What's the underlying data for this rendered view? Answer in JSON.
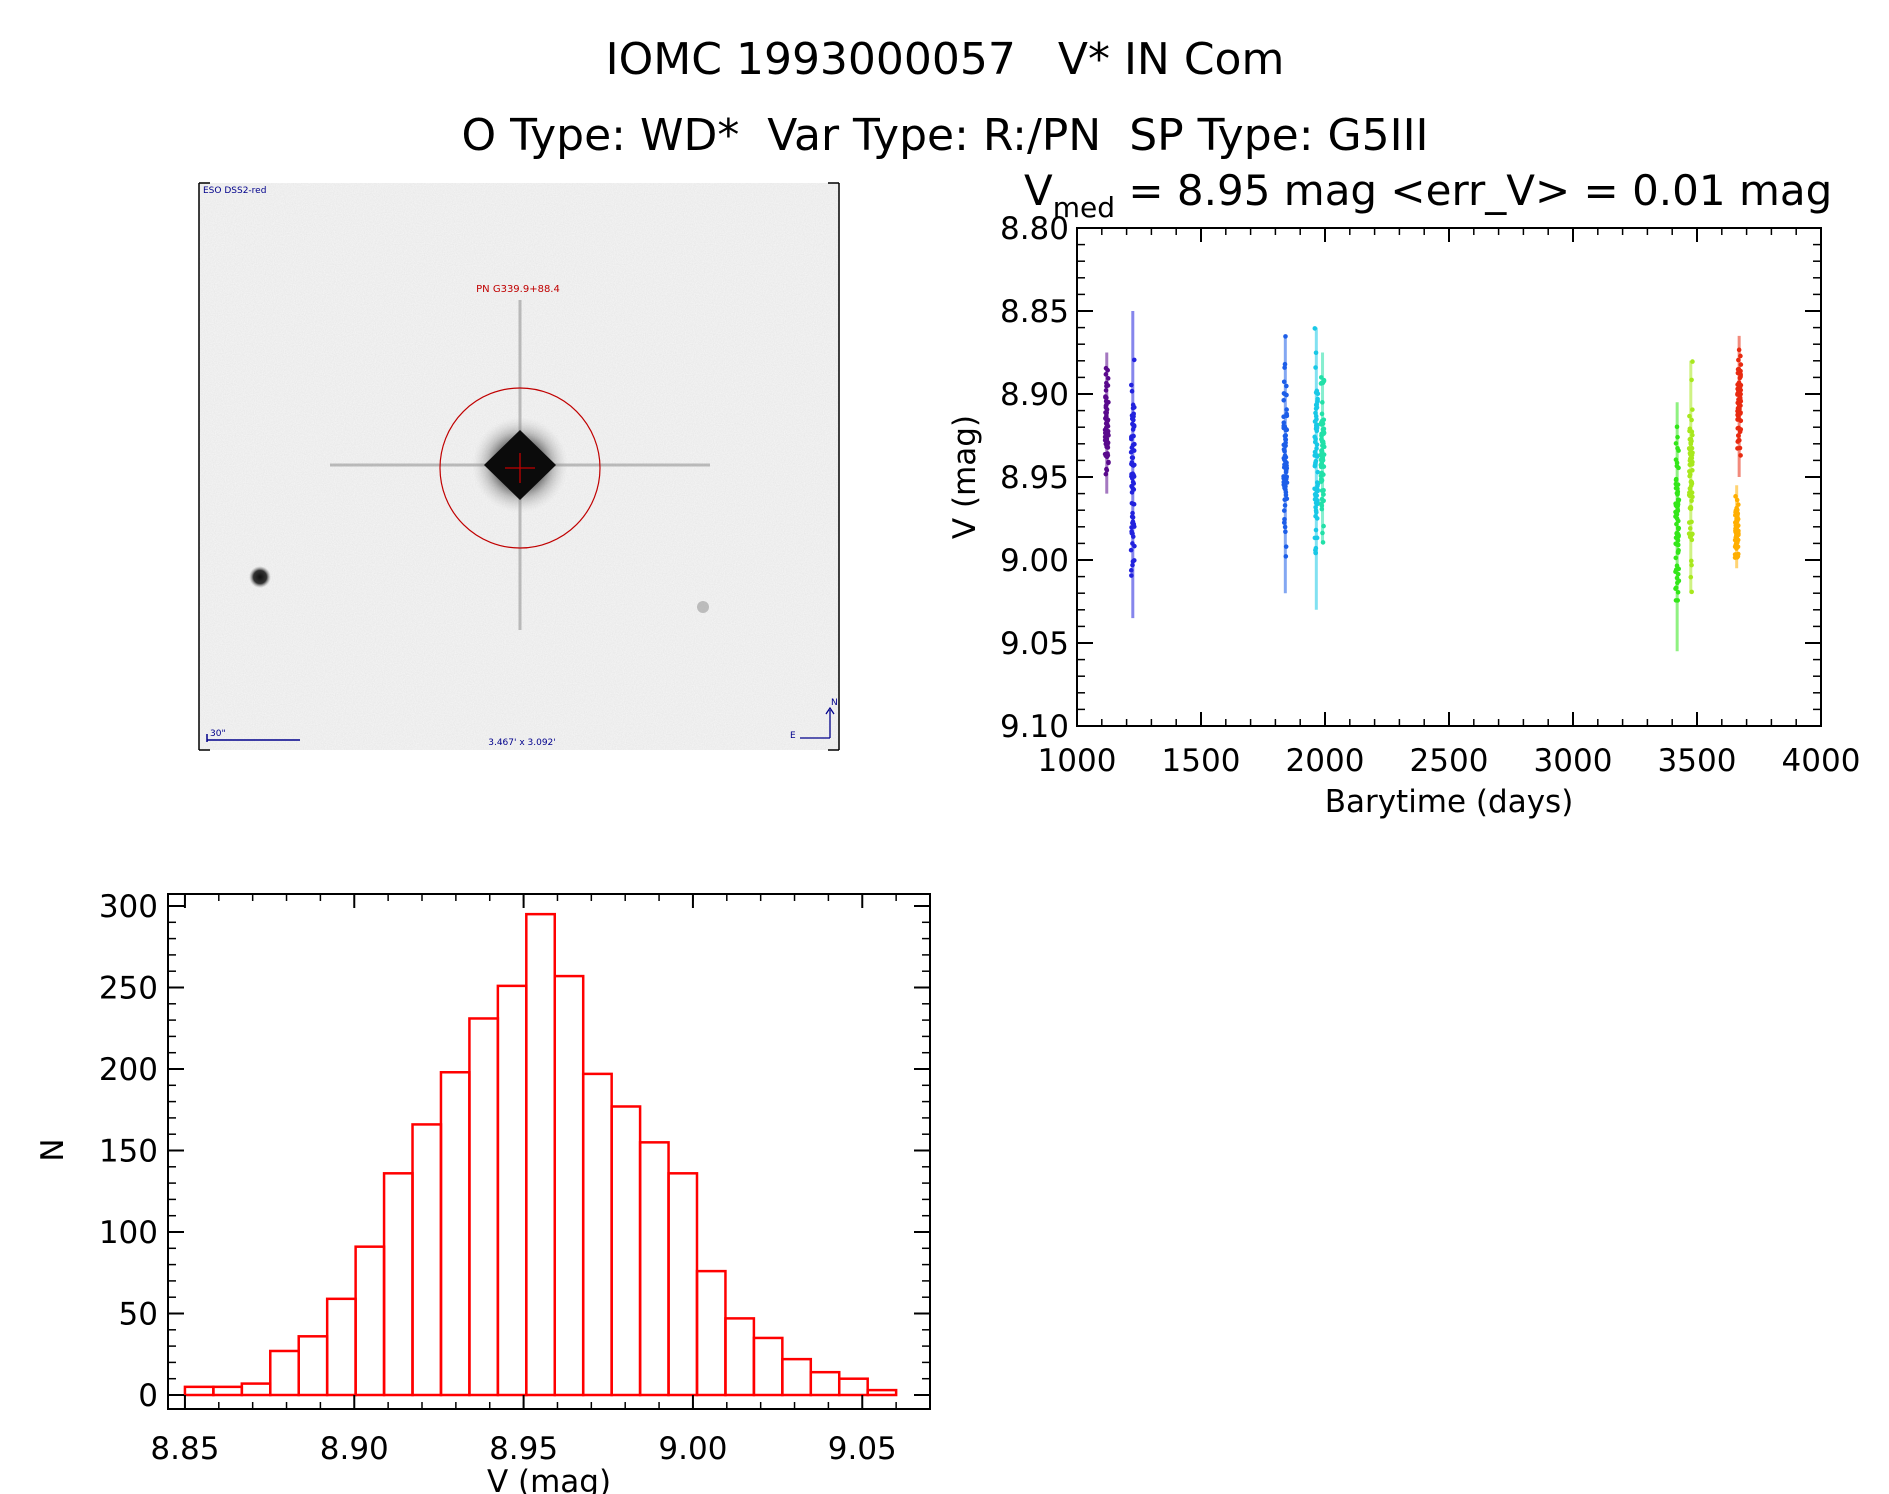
{
  "header": {
    "title_line1": "IOMC 1993000057   V* IN Com",
    "title_line2": "O Type: WD*  Var Type: R:/PN  SP Type: G5III"
  },
  "finder_image": {
    "survey_label": "ESO DSS2-red",
    "object_label": "PN G339.9+88.4",
    "scale_label": "30\"",
    "size_label": "3.467' x 3.092'",
    "north_label": "N",
    "east_label": "E",
    "marker_color": "#c00000",
    "annotation_color": "#00008b"
  },
  "chart_data": [
    {
      "type": "scatter",
      "title_prefix": "V",
      "title_subscript": "med",
      "title_rest": " = 8.95 mag <err_V> = 0.01 mag",
      "xlabel": "Barytime (days)",
      "ylabel": "V (mag)",
      "xlim": [
        1000,
        4000
      ],
      "ylim": [
        9.1,
        8.8
      ],
      "y_inverted": true,
      "x_ticks": [
        "1000",
        "1500",
        "2000",
        "2500",
        "3000",
        "3500",
        "4000"
      ],
      "y_ticks": [
        "8.80",
        "8.85",
        "8.90",
        "8.95",
        "9.00",
        "9.05",
        "9.10"
      ],
      "series": [
        {
          "x": 1120,
          "ymin": 8.875,
          "ymax": 8.96,
          "color": "#5a0a8c"
        },
        {
          "x": 1225,
          "ymin": 8.85,
          "ymax": 9.035,
          "color": "#2222dd"
        },
        {
          "x": 1840,
          "ymin": 8.865,
          "ymax": 9.02,
          "color": "#1e5ee8"
        },
        {
          "x": 1965,
          "ymin": 8.86,
          "ymax": 9.03,
          "color": "#19c8e6"
        },
        {
          "x": 1990,
          "ymin": 8.875,
          "ymax": 8.99,
          "color": "#22e0a8"
        },
        {
          "x": 3420,
          "ymin": 8.905,
          "ymax": 9.055,
          "color": "#33e61a"
        },
        {
          "x": 3475,
          "ymin": 8.88,
          "ymax": 9.02,
          "color": "#a8e81e"
        },
        {
          "x": 3660,
          "ymin": 8.955,
          "ymax": 9.005,
          "color": "#ffae00"
        },
        {
          "x": 3670,
          "ymin": 8.865,
          "ymax": 8.95,
          "color": "#e82a10"
        }
      ]
    },
    {
      "type": "bar",
      "subtype": "histogram",
      "xlabel": "V (mag)",
      "ylabel": "N",
      "xlim": [
        8.845,
        9.07
      ],
      "ylim": [
        0,
        300
      ],
      "x_ticks": [
        "8.85",
        "8.90",
        "8.95",
        "9.00",
        "9.05"
      ],
      "y_ticks": [
        "0",
        "50",
        "100",
        "150",
        "200",
        "250",
        "300"
      ],
      "bin_start": 8.85,
      "bin_width": 0.0084,
      "values": [
        5,
        5,
        7,
        27,
        36,
        59,
        91,
        136,
        166,
        198,
        231,
        251,
        295,
        257,
        197,
        177,
        155,
        136,
        76,
        47,
        35,
        22,
        14,
        10,
        3
      ],
      "color": "#ff0000"
    }
  ]
}
